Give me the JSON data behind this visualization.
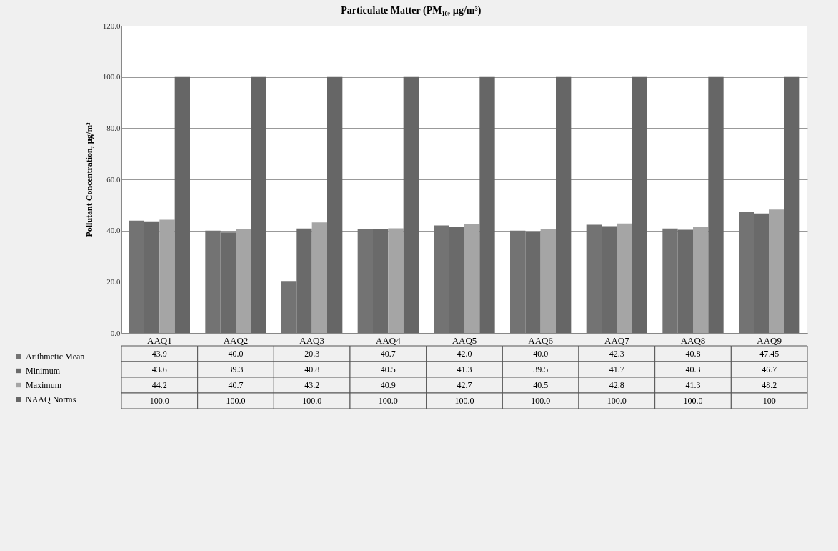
{
  "chart_data": {
    "type": "bar",
    "title": "Particulate Matter (PM₁₀, µg/m³)",
    "ylabel": "Pollutant Concentration, µg/m³",
    "categories": [
      "AAQ1",
      "AAQ2",
      "AAQ3",
      "AAQ4",
      "AAQ5",
      "AAQ6",
      "AAQ7",
      "AAQ8",
      "AAQ9"
    ],
    "series": [
      {
        "name": "Arithmetic Mean",
        "color": "#737373",
        "values": [
          43.9,
          40.0,
          20.3,
          40.7,
          42.0,
          40.0,
          42.3,
          40.8,
          47.45
        ],
        "value_labels": [
          "43.9",
          "40.0",
          "20.3",
          "40.7",
          "42.0",
          "40.0",
          "42.3",
          "40.8",
          "47.45"
        ]
      },
      {
        "name": "Minimum",
        "color": "#6a6a6a",
        "values": [
          43.6,
          39.3,
          40.8,
          40.5,
          41.3,
          39.5,
          41.7,
          40.3,
          46.7
        ],
        "value_labels": [
          "43.6",
          "39.3",
          "40.8",
          "40.5",
          "41.3",
          "39.5",
          "41.7",
          "40.3",
          "46.7"
        ]
      },
      {
        "name": "Maximum",
        "color": "#a5a5a5",
        "values": [
          44.2,
          40.7,
          43.2,
          40.9,
          42.7,
          40.5,
          42.8,
          41.3,
          48.2
        ],
        "value_labels": [
          "44.2",
          "40.7",
          "43.2",
          "40.9",
          "42.7",
          "40.5",
          "42.8",
          "41.3",
          "48.2"
        ]
      },
      {
        "name": "NAAQ Norms",
        "color": "#666666",
        "values": [
          100.0,
          100.0,
          100.0,
          100.0,
          100.0,
          100.0,
          100.0,
          100.0,
          100
        ],
        "value_labels": [
          "100.0",
          "100.0",
          "100.0",
          "100.0",
          "100.0",
          "100.0",
          "100.0",
          "100.0",
          "100"
        ]
      }
    ],
    "ylim": [
      0,
      120
    ],
    "yticks": [
      {
        "value": 0,
        "label": "0.0"
      },
      {
        "value": 20,
        "label": "20.0"
      },
      {
        "value": 40,
        "label": "40.0"
      },
      {
        "value": 60,
        "label": "60.0"
      },
      {
        "value": 80,
        "label": "80.0"
      },
      {
        "value": 100,
        "label": "100.0"
      },
      {
        "value": 120,
        "label": "120.0"
      }
    ],
    "grid": "y",
    "legend": "bottom left"
  }
}
